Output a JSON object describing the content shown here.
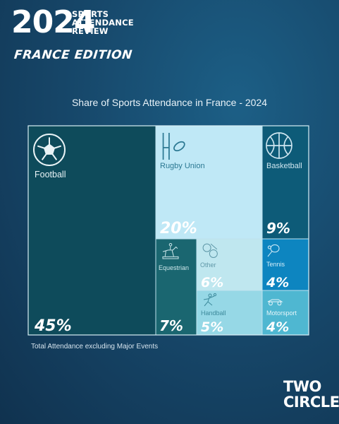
{
  "header": {
    "year": "2024",
    "title_lines": [
      "SPORTS",
      "ATTENDANCE",
      "REVIEW"
    ],
    "edition": "FRANCE EDITION"
  },
  "chart_data": {
    "type": "treemap",
    "title": "Share of Sports Attendance in France - 2024",
    "unit": "%",
    "items": [
      {
        "name": "Football",
        "value": 45,
        "label": "45%",
        "icon": "soccer-ball-icon",
        "fill": "#0e4b5b",
        "text": "#e9f3f6",
        "pct": "#ffffff"
      },
      {
        "name": "Rugby Union",
        "value": 20,
        "label": "20%",
        "icon": "rugby-posts-icon",
        "fill": "#bfe8f6",
        "text": "#2b7892",
        "pct": "#ffffff"
      },
      {
        "name": "Basketball",
        "value": 9,
        "label": "9%",
        "icon": "basketball-icon",
        "fill": "#0d5b78",
        "text": "#cfe6f0",
        "pct": "#ffffff"
      },
      {
        "name": "Equestrian",
        "value": 7,
        "label": "7%",
        "icon": "horse-rider-icon",
        "fill": "#1a6670",
        "text": "#cfe8ec",
        "pct": "#ffffff"
      },
      {
        "name": "Other",
        "value": 6,
        "label": "6%",
        "icon": "mixed-sports-icon",
        "fill": "#bfe7ef",
        "text": "#5f98a8",
        "pct": "#ffffff"
      },
      {
        "name": "Tennis",
        "value": 4,
        "label": "4%",
        "icon": "tennis-icon",
        "fill": "#0d85c0",
        "text": "#d6eef9",
        "pct": "#ffffff"
      },
      {
        "name": "Handball",
        "value": 5,
        "label": "5%",
        "icon": "handball-player-icon",
        "fill": "#96d8e6",
        "text": "#3d8a9c",
        "pct": "#ffffff"
      },
      {
        "name": "Motorsport",
        "value": 4,
        "label": "4%",
        "icon": "race-car-icon",
        "fill": "#4fb7d1",
        "text": "#e8f6fa",
        "pct": "#ffffff"
      }
    ]
  },
  "footnote": "Total Attendance excluding Major Events",
  "logo": {
    "line1": "TWO",
    "line2": "CIRCLES"
  }
}
